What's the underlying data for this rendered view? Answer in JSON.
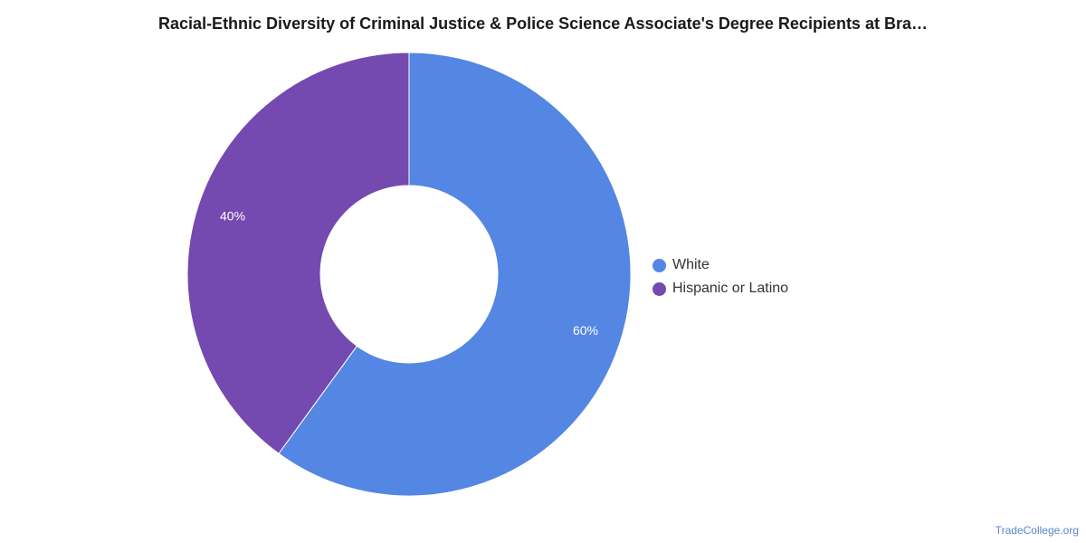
{
  "chart_data": {
    "type": "pie",
    "title": "Racial-Ethnic Diversity of Criminal Justice & Police Science Associate's Degree Recipients at Bra…",
    "donut": true,
    "slices": [
      {
        "name": "White",
        "value": 60,
        "label": "60%",
        "color": "#5486e3"
      },
      {
        "name": "Hispanic or Latino",
        "value": 40,
        "label": "40%",
        "color": "#7449b0"
      }
    ],
    "legend_position": "right"
  },
  "watermark": "TradeCollege.org"
}
